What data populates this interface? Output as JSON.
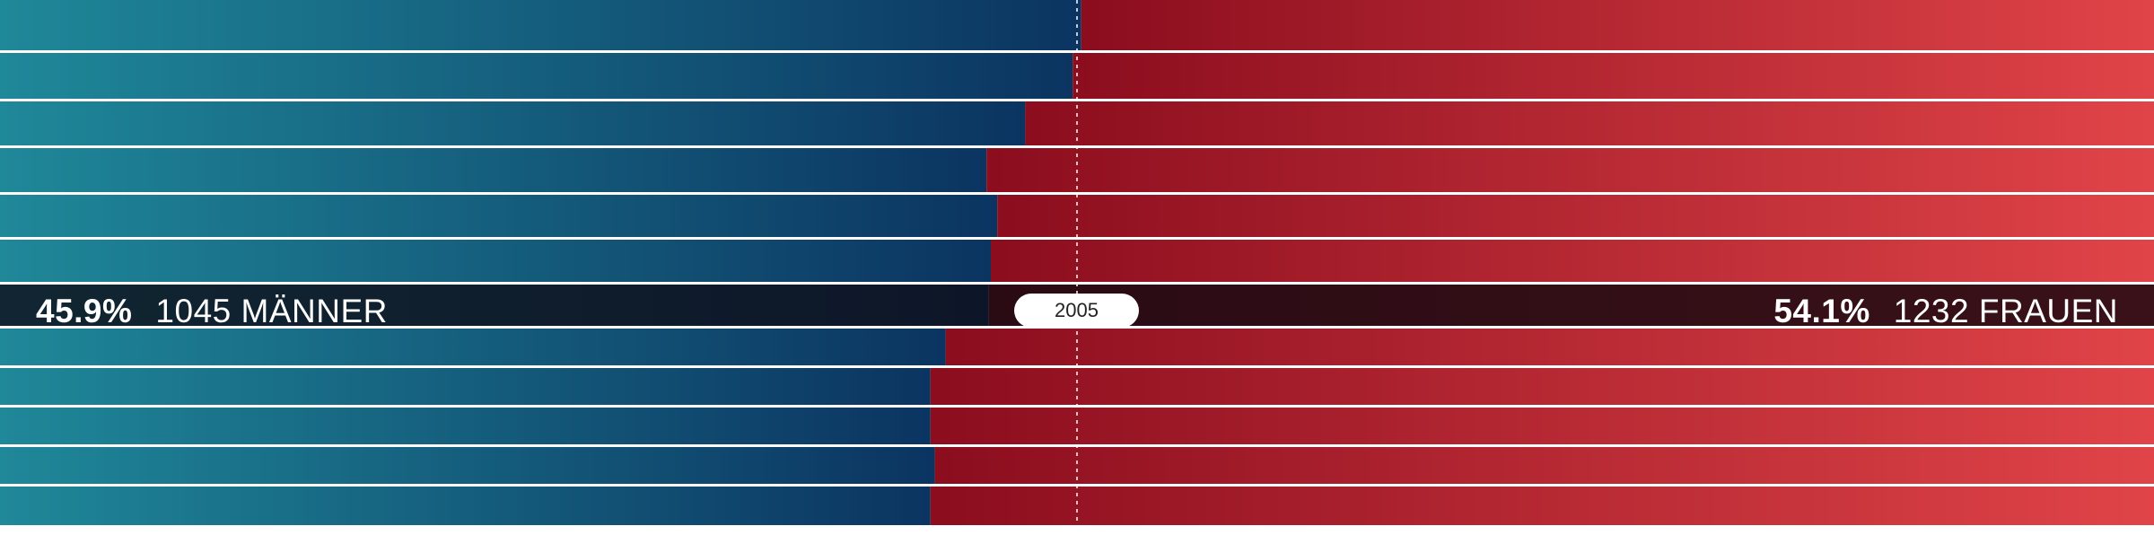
{
  "chart_data": {
    "type": "bar",
    "subtype": "stacked-100-percent-horizontal",
    "categories": [
      "",
      "",
      "",
      "",
      "",
      "",
      "2005",
      "",
      "",
      "",
      "",
      ""
    ],
    "series": [
      {
        "name": "MÄNNER",
        "values": [
          50.2,
          49.8,
          47.6,
          45.8,
          46.3,
          46.0,
          45.9,
          43.9,
          43.2,
          43.2,
          43.4,
          43.2
        ]
      },
      {
        "name": "FRAUEN",
        "values": [
          49.8,
          50.2,
          52.4,
          54.2,
          53.7,
          54.0,
          54.1,
          56.1,
          56.8,
          56.8,
          56.6,
          56.8
        ]
      }
    ],
    "xlim": [
      0,
      100
    ],
    "reference_line": 50,
    "highlight_index": 6,
    "highlight": {
      "year": "2005",
      "left_percent": "45.9%",
      "left_label": "1045 MÄNNER",
      "right_percent": "54.1%",
      "right_label": "1232 FRAUEN"
    },
    "colors": {
      "left_start": "#1f8899",
      "left_end": "#0b3461",
      "right_start": "#8b0d1e",
      "right_end": "#e04448",
      "highlight_left_start": "#112632",
      "highlight_left_end": "#0d1628",
      "highlight_right_start": "#2a0b14",
      "highlight_right_end": "#3a1118"
    }
  }
}
